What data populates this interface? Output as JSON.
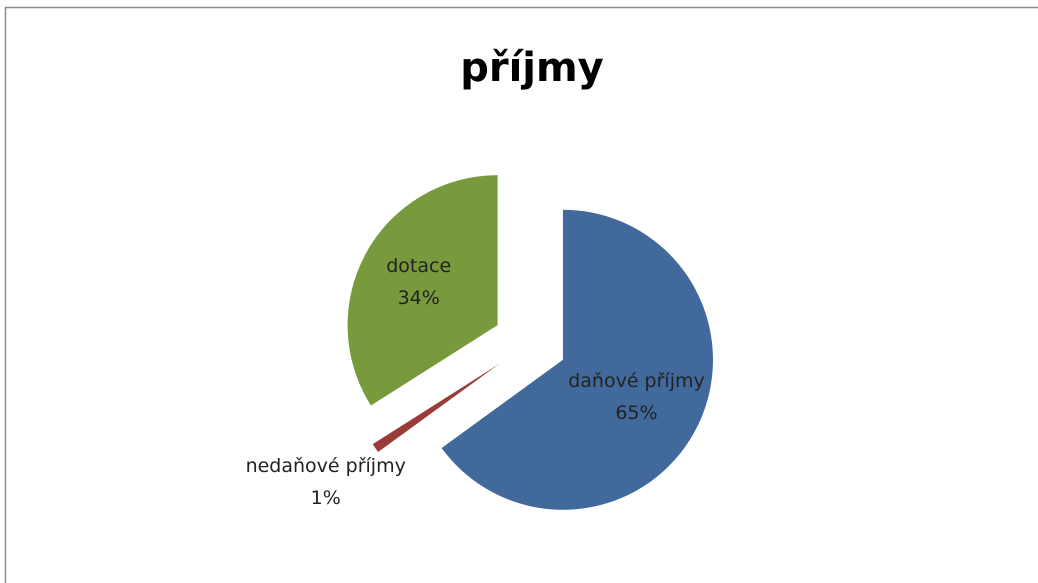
{
  "chart_data": {
    "type": "pie",
    "title": "příjmy",
    "categories": [
      "daňové příjmy",
      "nedaňové příjmy",
      "dotace"
    ],
    "values": [
      65,
      1,
      34
    ],
    "value_labels": [
      "65%",
      "1%",
      "34%"
    ],
    "colors": [
      "#41699b",
      "#9b3b38",
      "#789a3c"
    ]
  }
}
